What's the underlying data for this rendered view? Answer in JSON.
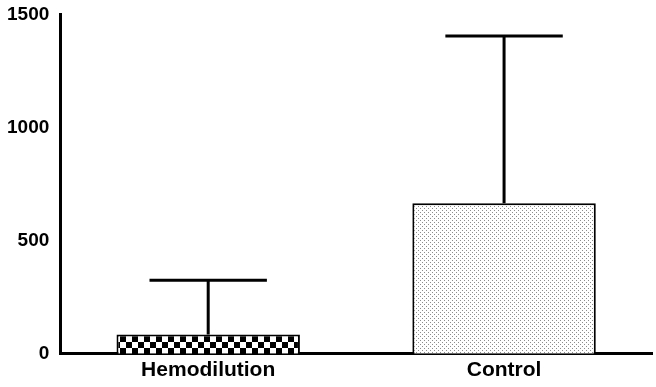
{
  "chart_data": {
    "type": "bar",
    "categories": [
      "Hemodilution",
      "Control"
    ],
    "values": [
      85,
      665
    ],
    "errors": [
      240,
      740
    ],
    "colors": [
      "#000000",
      "#8c8c8c"
    ],
    "ylim": [
      0,
      1500
    ],
    "yticks": [
      0,
      500,
      1000,
      1500
    ],
    "grid": false
  }
}
